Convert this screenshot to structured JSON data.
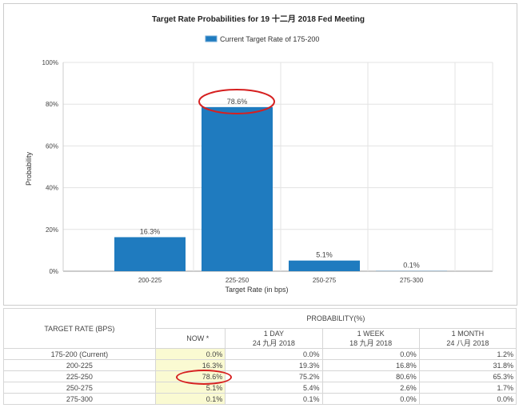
{
  "chart_data": {
    "type": "bar",
    "title": "Target Rate Probabilities for 19 十二月 2018 Fed Meeting",
    "legend": "Current Target Rate of 175-200",
    "legend_placement": "top-center",
    "xlabel": "Target Rate (in bps)",
    "ylabel": "Probability",
    "categories": [
      "200-225",
      "225-250",
      "250-275",
      "275-300"
    ],
    "values": [
      16.3,
      78.6,
      5.1,
      0.1
    ],
    "data_labels": [
      "16.3%",
      "78.6%",
      "5.1%",
      "0.1%"
    ],
    "ylim": [
      0,
      100
    ],
    "yticks": [
      "0%",
      "20%",
      "40%",
      "60%",
      "80%",
      "100%"
    ],
    "grid": true,
    "bar_color": "#1f7bbf",
    "highlight_color": "#d62020"
  },
  "table": {
    "row_header": "TARGET RATE (BPS)",
    "group_header": "PROBABILITY(%)",
    "columns": [
      {
        "l1": "NOW *",
        "l2": ""
      },
      {
        "l1": "1 DAY",
        "l2": "24 九月 2018"
      },
      {
        "l1": "1 WEEK",
        "l2": "18 九月 2018"
      },
      {
        "l1": "1 MONTH",
        "l2": "24 八月 2018"
      }
    ],
    "rows": [
      {
        "rate": "175-200 (Current)",
        "v": [
          "0.0%",
          "0.0%",
          "0.0%",
          "1.2%"
        ]
      },
      {
        "rate": "200-225",
        "v": [
          "16.3%",
          "19.3%",
          "16.8%",
          "31.8%"
        ]
      },
      {
        "rate": "225-250",
        "v": [
          "78.6%",
          "75.2%",
          "80.6%",
          "65.3%"
        ]
      },
      {
        "rate": "250-275",
        "v": [
          "5.1%",
          "5.4%",
          "2.6%",
          "1.7%"
        ]
      },
      {
        "rate": "275-300",
        "v": [
          "0.1%",
          "0.1%",
          "0.0%",
          "0.0%"
        ]
      }
    ]
  }
}
